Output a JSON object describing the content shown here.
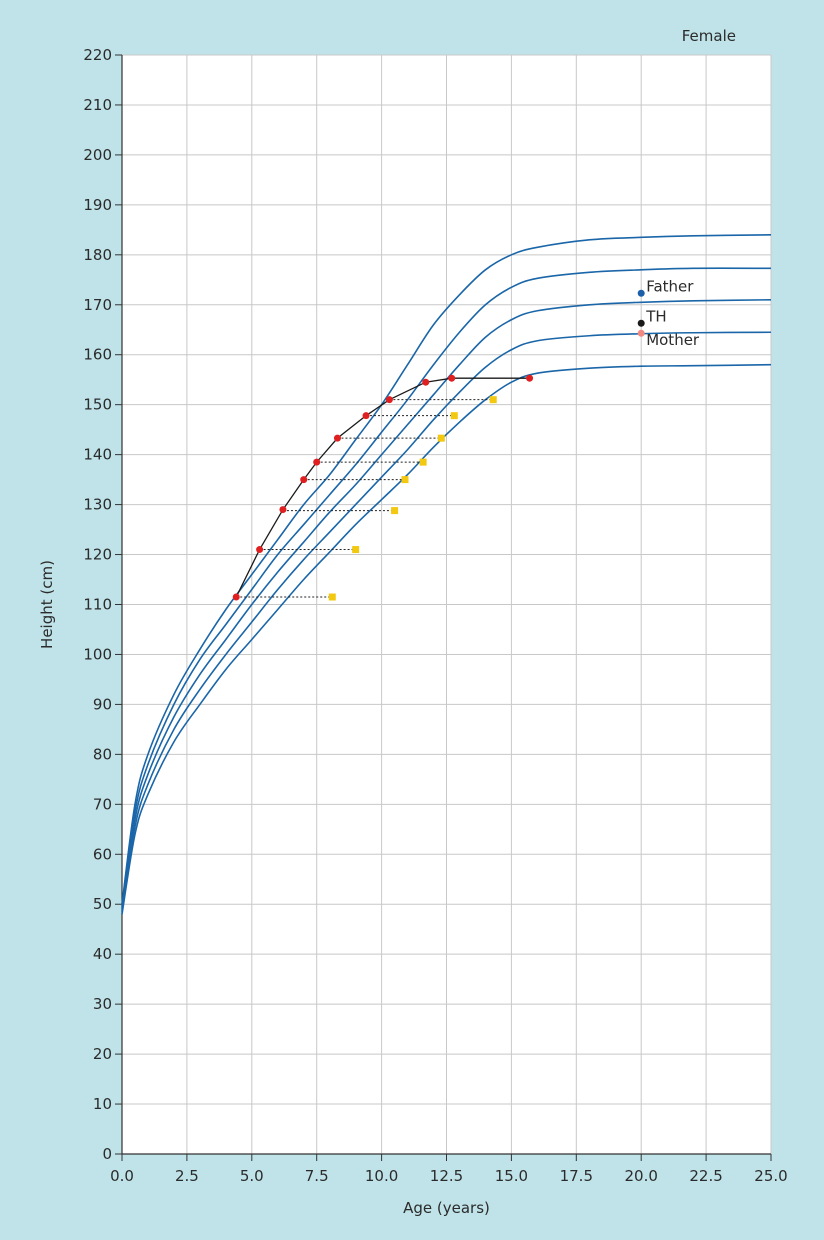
{
  "chart_data": {
    "type": "line",
    "title": "Female",
    "xlabel": "Age (years)",
    "ylabel": "Height (cm)",
    "xlim": [
      0,
      25
    ],
    "ylim": [
      0,
      220
    ],
    "x_ticks": [
      "0.0",
      "2.5",
      "5.0",
      "7.5",
      "10.0",
      "12.5",
      "15.0",
      "17.5",
      "20.0",
      "22.5",
      "25.0"
    ],
    "y_ticks": [
      "0",
      "10",
      "20",
      "30",
      "40",
      "50",
      "60",
      "70",
      "80",
      "90",
      "100",
      "110",
      "120",
      "130",
      "140",
      "150",
      "160",
      "170",
      "180",
      "190",
      "200",
      "210",
      "220"
    ],
    "grid": true,
    "colors": {
      "centile": "#1a66a8",
      "measured": "#e02020",
      "bone_age": "#f2c811",
      "father": "#1a5fa8",
      "th": "#1a1a1a",
      "mother": "#f08a80",
      "plot_bg": "#ffffff",
      "grid": "#c8c8c8"
    },
    "centile_series": [
      {
        "x": [
          0,
          0.5,
          1,
          2,
          3,
          4,
          5,
          6,
          7,
          8,
          9,
          10,
          11,
          12,
          13,
          14,
          15,
          16,
          18,
          20,
          22,
          25
        ],
        "y": [
          50,
          70,
          80,
          92,
          101,
          109,
          116,
          123,
          130,
          136,
          143,
          150,
          158,
          166,
          172,
          177,
          180,
          181.5,
          183,
          183.5,
          183.8,
          184
        ]
      },
      {
        "x": [
          0,
          0.5,
          1,
          2,
          3,
          4,
          5,
          6,
          7,
          8,
          9,
          10,
          11,
          12,
          13,
          14,
          15,
          16,
          18,
          20,
          22,
          25
        ],
        "y": [
          49.5,
          68.5,
          78,
          90,
          99,
          106,
          113,
          120,
          126,
          132,
          138,
          144.5,
          151,
          158,
          164.5,
          170,
          173.5,
          175.3,
          176.5,
          177,
          177.3,
          177.3
        ]
      },
      {
        "x": [
          0,
          0.5,
          1,
          2,
          3,
          4,
          5,
          6,
          7,
          8,
          9,
          10,
          11,
          12,
          13,
          14,
          15,
          16,
          18,
          20,
          22,
          25
        ],
        "y": [
          49,
          67,
          76,
          87.5,
          96,
          103,
          110,
          116.5,
          122.5,
          128.5,
          134,
          140,
          146,
          152,
          158,
          163.5,
          167,
          168.8,
          170,
          170.5,
          170.8,
          171
        ]
      },
      {
        "x": [
          0,
          0.5,
          1,
          2,
          3,
          4,
          5,
          6,
          7,
          8,
          9,
          10,
          11,
          12,
          13,
          14,
          15,
          16,
          18,
          20,
          22,
          25
        ],
        "y": [
          48.5,
          65.5,
          74,
          85,
          93,
          100,
          106.5,
          113,
          119,
          124.5,
          130,
          135.5,
          141,
          147,
          152.5,
          157.5,
          161,
          162.8,
          163.8,
          164.2,
          164.4,
          164.5
        ]
      },
      {
        "x": [
          0,
          0.5,
          1,
          2,
          3,
          4,
          5,
          6,
          7,
          8,
          9,
          10,
          11,
          12,
          13,
          14,
          15,
          16,
          18,
          20,
          22,
          25
        ],
        "y": [
          48,
          64,
          72,
          82.5,
          90,
          97,
          103,
          109,
          115,
          120.5,
          126,
          131,
          136,
          141.5,
          146.5,
          151,
          154.5,
          156.3,
          157.3,
          157.7,
          157.8,
          158
        ]
      }
    ],
    "measured_height": {
      "x": [
        4.4,
        5.3,
        6.2,
        7.0,
        7.5,
        8.3,
        9.4,
        10.3,
        11.7,
        12.7,
        15.7
      ],
      "y": [
        111.5,
        121,
        129,
        135,
        138.5,
        143.3,
        147.8,
        151,
        154.5,
        155.3,
        155.3
      ]
    },
    "bone_age": {
      "x": [
        8.1,
        9.0,
        10.5,
        10.9,
        11.6,
        12.3,
        12.8,
        14.3
      ],
      "y": [
        111.5,
        121,
        128.8,
        135,
        138.5,
        143.3,
        147.8,
        151
      ]
    },
    "parents": [
      {
        "label": "Father",
        "x": 20,
        "y": 172.3,
        "color": "#1a5fa8"
      },
      {
        "label": "TH",
        "x": 20,
        "y": 166.3,
        "color": "#1a1a1a"
      },
      {
        "label": "Mother",
        "x": 20,
        "y": 164.3,
        "color": "#f08a80"
      }
    ]
  }
}
